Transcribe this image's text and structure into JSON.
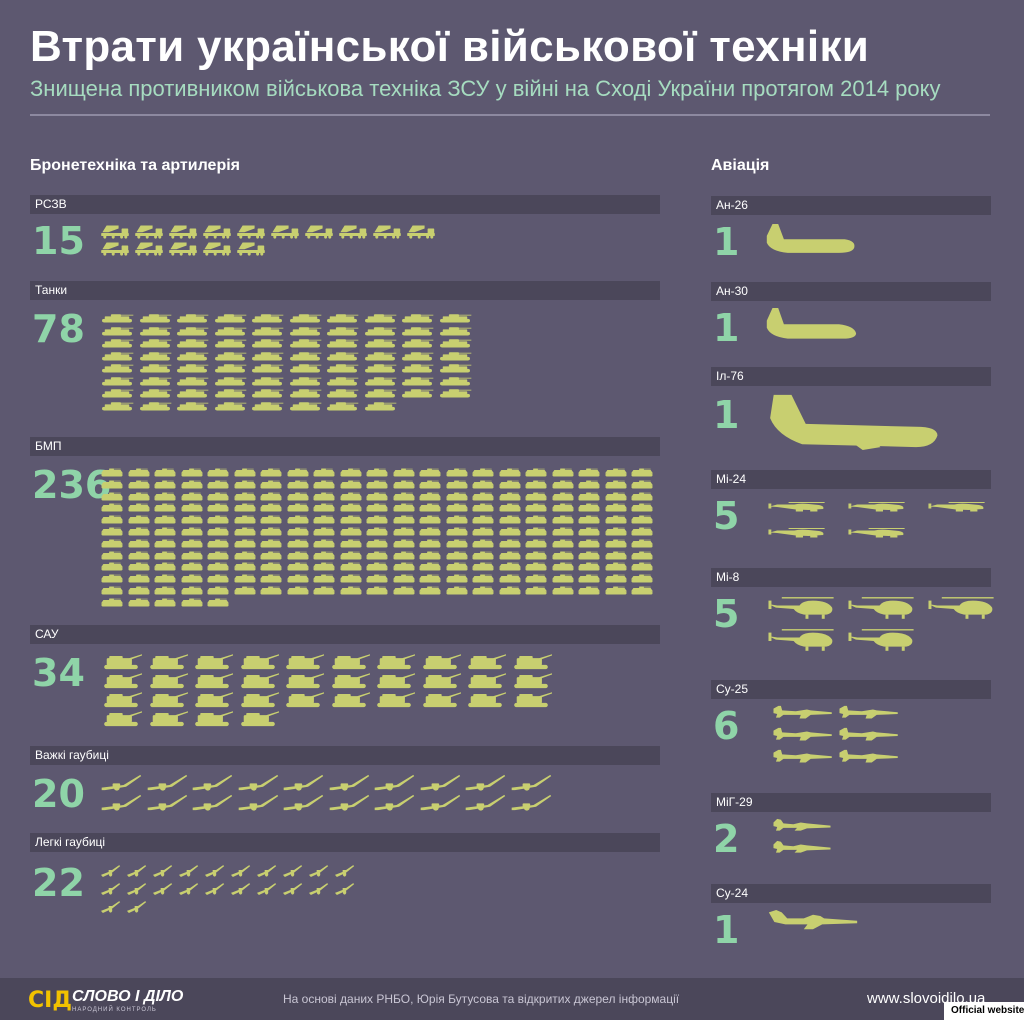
{
  "header": {
    "title": "Втрати української військової техніки",
    "subtitle": "Знищена противником військова техніка ЗСУ у війні на Сході України протягом 2014 року"
  },
  "armor_heading": "Бронетехніка та артилерія",
  "aviation_heading": "Авіація",
  "colors": {
    "background": "#5d5870",
    "bar": "#4b475a",
    "icon": "#c8cf70",
    "number": "#8fd4a8",
    "logo": "#f2c200"
  },
  "chart_data": [
    {
      "type": "pictogram",
      "title": "Бронетехніка та артилерія",
      "categories": [
        {
          "label": "РСЗВ",
          "count": 15,
          "icon": "mlrs-icon"
        },
        {
          "label": "Танки",
          "count": 78,
          "icon": "tank-icon"
        },
        {
          "label": "БМП",
          "count": 236,
          "icon": "ifv-icon"
        },
        {
          "label": "САУ",
          "count": 34,
          "icon": "self-propelled-gun-icon"
        },
        {
          "label": "Важкі гаубиці",
          "count": 20,
          "icon": "heavy-howitzer-icon"
        },
        {
          "label": "Легкі гаубиці",
          "count": 22,
          "icon": "light-howitzer-icon"
        }
      ]
    },
    {
      "type": "pictogram",
      "title": "Авіація",
      "categories": [
        {
          "label": "Ан-26",
          "count": 1,
          "icon": "an26-plane-icon"
        },
        {
          "label": "Ан-30",
          "count": 1,
          "icon": "an30-plane-icon"
        },
        {
          "label": "Іл-76",
          "count": 1,
          "icon": "il76-plane-icon"
        },
        {
          "label": "Мі-24",
          "count": 5,
          "icon": "mi24-helicopter-icon"
        },
        {
          "label": "Мі-8",
          "count": 5,
          "icon": "mi8-helicopter-icon"
        },
        {
          "label": "Су-25",
          "count": 6,
          "icon": "su25-jet-icon"
        },
        {
          "label": "МіГ-29",
          "count": 2,
          "icon": "mig29-jet-icon"
        },
        {
          "label": "Су-24",
          "count": 1,
          "icon": "su24-jet-icon"
        }
      ]
    }
  ],
  "footer": {
    "logo_symbol": "СІД",
    "logo_name": "СЛОВО І ДІЛО",
    "logo_tagline": "НАРОДНИЙ КОНТРОЛЬ",
    "source": "На основі даних РНБО, Юрія Бутусова та відкритих джерел інформації",
    "website": "www.slovoidilo.ua"
  },
  "official_badge": "Official website"
}
